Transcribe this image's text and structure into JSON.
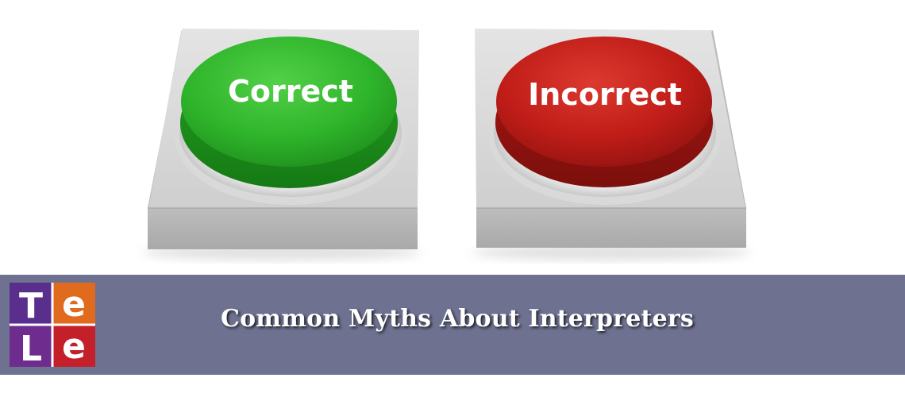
{
  "buttons": {
    "correct": {
      "label": "Correct",
      "color": "#2fb52b"
    },
    "incorrect": {
      "label": "Incorrect",
      "color": "#c01d18"
    }
  },
  "banner": {
    "title": "Common Myths About Interpreters",
    "background": "#6e7190"
  },
  "logo": {
    "letters": [
      "T",
      "e",
      "L",
      "e"
    ],
    "colors": [
      "#5a2e8c",
      "#e06a1e",
      "#6e2c8f",
      "#c4202a"
    ]
  }
}
